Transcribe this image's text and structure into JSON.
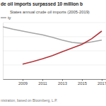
{
  "chart_data": {
    "type": "line",
    "title": "de oil imports surpassed 10 million b",
    "subtitle": "States annual crude oil imports (2005-2019)",
    "source": "nistration, based on Bloomberg, L.P.",
    "x": [
      2007,
      2008,
      2009,
      2010,
      2011,
      2012,
      2013,
      2014,
      2015,
      2016,
      2017
    ],
    "series": [
      {
        "name": "ty",
        "color": "#a6a6a6",
        "values": [
          11.1,
          10.6,
          10.2,
          9.8,
          9.4,
          8.9,
          8.3,
          7.8,
          7.6,
          7.9,
          8.3
        ]
      },
      {
        "color": "#b5343a",
        "values": [
          null,
          null,
          3.2,
          3.7,
          4.3,
          5.0,
          5.8,
          6.6,
          7.4,
          8.6,
          10.2
        ]
      }
    ],
    "xlim": [
      2007,
      2017.4
    ],
    "xticks": [
      2009,
      2011,
      2013,
      2015,
      2017
    ],
    "ylim": [
      0,
      12
    ],
    "yticks": [
      0,
      3,
      6,
      9,
      12
    ],
    "grid": true,
    "tick_labels": "x",
    "legend": "top-left"
  }
}
